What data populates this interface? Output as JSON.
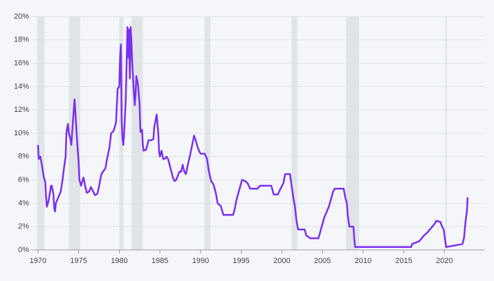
{
  "chart_data": {
    "type": "line",
    "xlim": [
      1969.5,
      2024.9
    ],
    "xticks": [
      1970,
      1975,
      1980,
      1985,
      1990,
      1995,
      2000,
      2005,
      2010,
      2015,
      2020
    ],
    "ylim": [
      0,
      20
    ],
    "yticks": [
      {
        "value": 0,
        "label": "0%"
      },
      {
        "value": 2,
        "label": "2%"
      },
      {
        "value": 4,
        "label": "4%"
      },
      {
        "value": 6,
        "label": "6%"
      },
      {
        "value": 8,
        "label": "8%"
      },
      {
        "value": 10,
        "label": "10%"
      },
      {
        "value": 12,
        "label": "12%"
      },
      {
        "value": 14,
        "label": "14%"
      },
      {
        "value": 16,
        "label": "16%"
      },
      {
        "value": 18,
        "label": "18%"
      },
      {
        "value": 20,
        "label": "20%"
      }
    ],
    "grid": true,
    "recessions": [
      [
        1969.9,
        1970.8
      ],
      [
        1973.8,
        1975.2
      ],
      [
        1980.0,
        1980.5
      ],
      [
        1981.5,
        1982.9
      ],
      [
        1990.5,
        1991.2
      ],
      [
        2001.2,
        2001.9
      ],
      [
        2007.9,
        2009.5
      ],
      [
        2020.1,
        2020.3
      ]
    ],
    "recession_color": "#e1e4e7",
    "series": [
      {
        "color": "#7a2ff0",
        "x": [
          1970.0,
          1970.1,
          1970.3,
          1970.5,
          1970.7,
          1970.9,
          1971.0,
          1971.1,
          1971.3,
          1971.5,
          1971.6,
          1971.7,
          1971.9,
          1972.0,
          1972.1,
          1972.2,
          1972.5,
          1972.8,
          1973.0,
          1973.2,
          1973.4,
          1973.5,
          1973.6,
          1973.7,
          1973.8,
          1974.0,
          1974.1,
          1974.3,
          1974.5,
          1974.6,
          1974.8,
          1975.0,
          1975.1,
          1975.3,
          1975.5,
          1975.6,
          1975.8,
          1976.0,
          1976.3,
          1976.5,
          1976.8,
          1977.0,
          1977.3,
          1977.5,
          1977.8,
          1978.0,
          1978.3,
          1978.5,
          1978.8,
          1979.0,
          1979.3,
          1979.6,
          1979.8,
          1980.0,
          1980.1,
          1980.2,
          1980.3,
          1980.4,
          1980.5,
          1980.6,
          1980.8,
          1980.9,
          1981.0,
          1981.1,
          1981.2,
          1981.3,
          1981.4,
          1981.5,
          1981.6,
          1981.8,
          1981.9,
          1982.0,
          1982.1,
          1982.3,
          1982.5,
          1982.6,
          1982.8,
          1982.9,
          1983.0,
          1983.3,
          1983.6,
          1983.9,
          1984.2,
          1984.3,
          1984.6,
          1984.8,
          1984.9,
          1985.0,
          1985.2,
          1985.4,
          1985.6,
          1985.8,
          1986.0,
          1986.3,
          1986.6,
          1986.8,
          1987.0,
          1987.4,
          1987.6,
          1987.8,
          1988.0,
          1988.2,
          1988.4,
          1988.7,
          1989.0,
          1989.2,
          1989.4,
          1989.6,
          1989.8,
          1990.0,
          1990.5,
          1990.8,
          1991.0,
          1991.3,
          1991.6,
          1991.9,
          1992.1,
          1992.5,
          1992.8,
          1993.5,
          1994.0,
          1994.2,
          1994.4,
          1994.6,
          1994.9,
          1995.1,
          1995.5,
          1995.8,
          1996.1,
          1997.0,
          1997.3,
          1998.7,
          1998.9,
          1999.0,
          1999.5,
          1999.8,
          2000.2,
          2000.4,
          2001.0,
          2001.2,
          2001.4,
          2001.6,
          2001.8,
          2002.0,
          2002.8,
          2003.0,
          2003.5,
          2004.5,
          2004.7,
          2005.2,
          2005.8,
          2006.3,
          2006.5,
          2007.6,
          2007.8,
          2008.0,
          2008.1,
          2008.3,
          2008.8,
          2008.9,
          2009.0,
          2015.9,
          2016.0,
          2016.9,
          2017.2,
          2017.5,
          2017.9,
          2018.2,
          2018.5,
          2018.8,
          2019.0,
          2019.5,
          2019.7,
          2019.9,
          2020.2,
          2022.2,
          2022.4,
          2022.5,
          2022.6,
          2022.75,
          2022.85
        ],
        "values": [
          9.0,
          7.8,
          8.0,
          7.2,
          6.3,
          5.8,
          4.5,
          3.7,
          4.2,
          5.0,
          5.5,
          5.5,
          4.8,
          3.6,
          3.3,
          4.0,
          4.5,
          5.0,
          5.9,
          7.0,
          8.0,
          10.0,
          10.5,
          10.8,
          10.0,
          9.5,
          9.0,
          11.0,
          12.9,
          11.8,
          9.5,
          7.5,
          6.0,
          5.5,
          6.0,
          6.2,
          5.5,
          4.9,
          5.0,
          5.4,
          5.0,
          4.7,
          4.8,
          5.4,
          6.5,
          6.7,
          7.0,
          7.8,
          8.8,
          10.0,
          10.2,
          10.9,
          13.8,
          14.0,
          16.5,
          17.6,
          11.0,
          9.5,
          9.0,
          10.0,
          13.0,
          15.8,
          19.1,
          16.5,
          18.9,
          14.7,
          19.1,
          17.8,
          15.9,
          13.5,
          12.4,
          13.2,
          14.9,
          14.2,
          12.5,
          10.1,
          10.3,
          9.0,
          8.5,
          8.6,
          9.4,
          9.4,
          9.5,
          10.5,
          11.6,
          10.0,
          8.4,
          8.0,
          8.5,
          7.8,
          7.8,
          8.0,
          7.8,
          7.0,
          6.2,
          5.9,
          6.0,
          6.7,
          6.7,
          7.3,
          6.7,
          6.5,
          7.2,
          8.1,
          9.1,
          9.8,
          9.4,
          8.9,
          8.5,
          8.25,
          8.25,
          7.8,
          6.8,
          5.9,
          5.6,
          4.8,
          4.0,
          3.75,
          3.0,
          3.0,
          3.0,
          3.5,
          4.25,
          4.75,
          5.5,
          6.0,
          5.9,
          5.7,
          5.25,
          5.25,
          5.5,
          5.5,
          5.0,
          4.75,
          4.75,
          5.2,
          5.75,
          6.5,
          6.5,
          5.5,
          4.5,
          3.75,
          2.5,
          1.75,
          1.75,
          1.25,
          1.0,
          1.0,
          1.5,
          2.75,
          3.75,
          5.0,
          5.25,
          5.25,
          4.5,
          4.0,
          3.0,
          2.0,
          2.0,
          1.0,
          0.25,
          0.25,
          0.5,
          0.75,
          1.0,
          1.25,
          1.5,
          1.75,
          2.0,
          2.25,
          2.5,
          2.4,
          2.0,
          1.75,
          0.25,
          0.5,
          1.0,
          1.75,
          2.5,
          3.25,
          4.5
        ]
      }
    ]
  }
}
